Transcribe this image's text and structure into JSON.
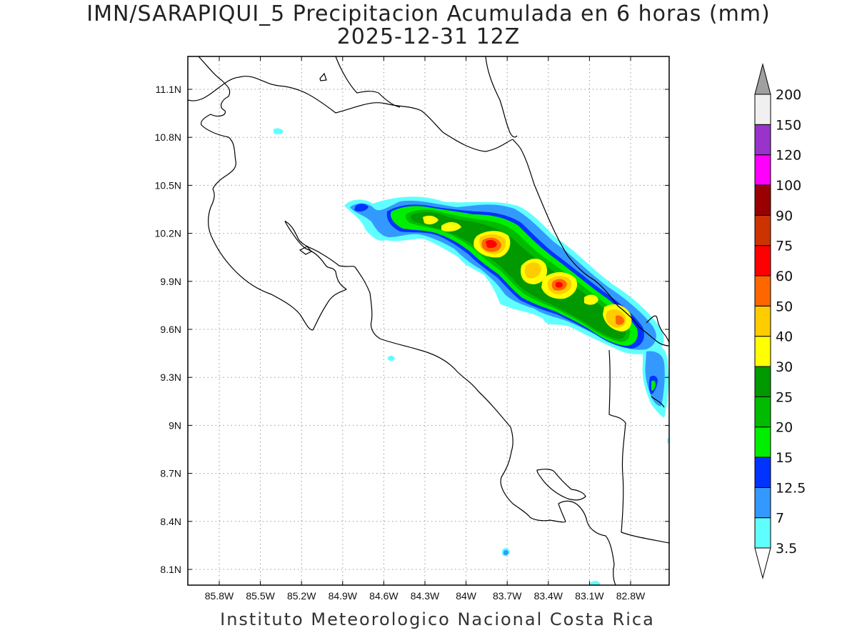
{
  "title": {
    "line1": "IMN/SARAPIQUI_5 Precipitacion Acumulada en 6 horas (mm)",
    "line2": "2025-12-31 12Z"
  },
  "footer": "Instituto Meteorologico Nacional Costa Rica",
  "map": {
    "lon_labels": [
      "85.8W",
      "85.5W",
      "85.2W",
      "84.9W",
      "84.6W",
      "84.3W",
      "84W",
      "83.7W",
      "83.4W",
      "83.1W",
      "82.8W"
    ],
    "lat_labels": [
      "11.1N",
      "10.8N",
      "10.5N",
      "10.2N",
      "9.9N",
      "9.6N",
      "9.3N",
      "9N",
      "8.7N",
      "8.4N",
      "8.1N"
    ],
    "lon_values": [
      -85.8,
      -85.5,
      -85.2,
      -84.9,
      -84.6,
      -84.3,
      -84.0,
      -83.7,
      -83.4,
      -83.1,
      -82.8
    ],
    "lat_values": [
      11.1,
      10.8,
      10.5,
      10.2,
      9.9,
      9.6,
      9.3,
      9.0,
      8.7,
      8.4,
      8.1
    ],
    "grid": true
  },
  "colorbar": {
    "labels": [
      "3.5",
      "7",
      "12.5",
      "15",
      "20",
      "25",
      "30",
      "40",
      "50",
      "60",
      "75",
      "90",
      "100",
      "120",
      "150",
      "200"
    ],
    "colors": [
      "#60ffff",
      "#3399ff",
      "#0033ff",
      "#00ee00",
      "#00bb00",
      "#009900",
      "#ffff00",
      "#ffcc00",
      "#ff6600",
      "#ff0000",
      "#cc3300",
      "#990000",
      "#ff00ff",
      "#9933cc",
      "#f0f0f0"
    ],
    "over_color": "#a0a0a0",
    "under_color": "#ffffff"
  }
}
